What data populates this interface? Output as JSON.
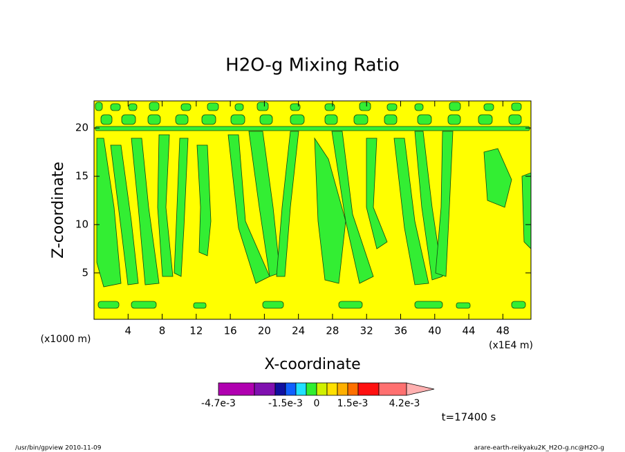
{
  "chart_data": {
    "type": "contour",
    "title": "H2O-g Mixing Ratio",
    "x_label": "X-coordinate",
    "y_label": "Z-coordinate",
    "x_unit": "(x1E4 m)",
    "y_unit": "(x1000 m)",
    "xlim": [
      0,
      51.3
    ],
    "ylim": [
      0.2,
      22.8
    ],
    "xticks": [
      4,
      8,
      12,
      16,
      20,
      24,
      28,
      32,
      36,
      40,
      44,
      48
    ],
    "yticks": [
      5,
      10,
      15,
      20
    ],
    "field_color": "#ffff00",
    "colorbar": {
      "colors": [
        "#b000b0",
        "#8010b0",
        "#1010a0",
        "#1060ff",
        "#20e0ff",
        "#30ee30",
        "#d0f000",
        "#ffe000",
        "#ffb000",
        "#ff7000",
        "#ff1010",
        "#ff7070",
        "#ffb0b0"
      ],
      "labels": [
        "-4.7e-3",
        "-1.5e-3",
        "0",
        "1.5e-3",
        "4.2e-3"
      ]
    },
    "time_label": "t=17400 s",
    "footer_left": "/usr/bin/gpview  2010-11-09",
    "footer_right": "arare-earth-reikyaku2K_H2O-g.nc@H2O-g"
  }
}
